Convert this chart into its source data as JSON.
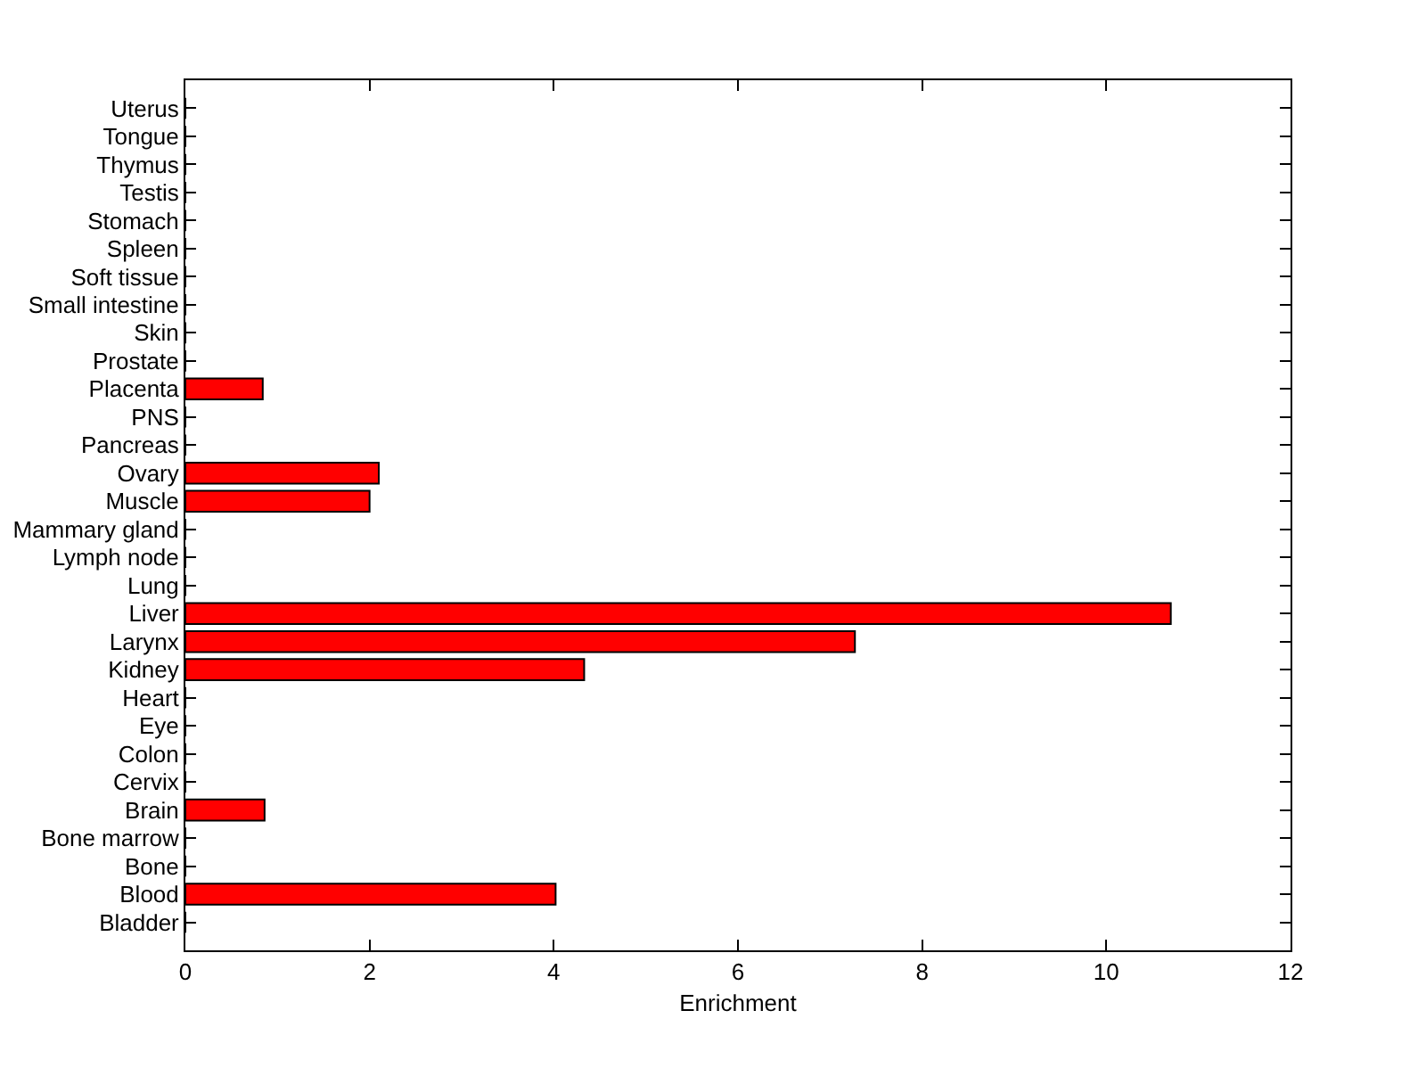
{
  "chart_data": {
    "type": "bar",
    "orientation": "horizontal",
    "xlabel": "Enrichment",
    "categories": [
      "Uterus",
      "Tongue",
      "Thymus",
      "Testis",
      "Stomach",
      "Spleen",
      "Soft tissue",
      "Small intestine",
      "Skin",
      "Prostate",
      "Placenta",
      "PNS",
      "Pancreas",
      "Ovary",
      "Muscle",
      "Mammary gland",
      "Lymph node",
      "Lung",
      "Liver",
      "Larynx",
      "Kidney",
      "Heart",
      "Eye",
      "Colon",
      "Cervix",
      "Brain",
      "Bone marrow",
      "Bone",
      "Blood",
      "Bladder"
    ],
    "values": [
      0,
      0,
      0,
      0,
      0,
      0,
      0,
      0,
      0,
      0,
      0.84,
      0,
      0,
      2.1,
      2.0,
      0,
      0,
      0,
      10.7,
      7.27,
      4.33,
      0,
      0,
      0,
      0,
      0.86,
      0,
      0,
      4.02,
      0
    ],
    "color": "#ff0000",
    "xlim": [
      0,
      12
    ],
    "xticks": [
      0,
      2,
      4,
      6,
      8,
      10,
      12
    ],
    "grid": false
  }
}
